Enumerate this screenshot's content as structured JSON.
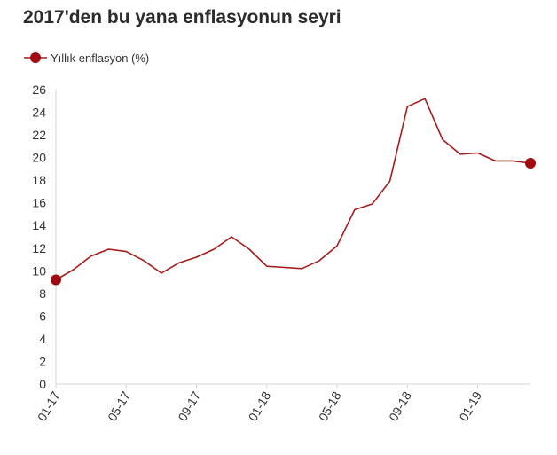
{
  "colors": {
    "series": "#a51c1c",
    "marker": "#a0090f",
    "axis": "#d6d6d6",
    "text": "#333333"
  },
  "chart_data": {
    "type": "line",
    "title": "2017'den bu yana enflasyonun seyri",
    "legend": "top-left",
    "grid": false,
    "xlabel": "",
    "ylabel": "",
    "ylim": [
      0,
      26
    ],
    "y_ticks": [
      "0",
      "2",
      "4",
      "6",
      "8",
      "10",
      "12",
      "14",
      "16",
      "18",
      "20",
      "22",
      "24",
      "26"
    ],
    "x_ticks": [
      "01-17",
      "05-17",
      "09-17",
      "01-18",
      "05-18",
      "09-18",
      "01-19"
    ],
    "x": [
      "01-17",
      "02-17",
      "03-17",
      "04-17",
      "05-17",
      "06-17",
      "07-17",
      "08-17",
      "09-17",
      "10-17",
      "11-17",
      "12-17",
      "01-18",
      "02-18",
      "03-18",
      "04-18",
      "05-18",
      "06-18",
      "07-18",
      "08-18",
      "09-18",
      "10-18",
      "11-18",
      "12-18",
      "01-19",
      "02-19",
      "03-19",
      "04-19"
    ],
    "series": [
      {
        "name": "Yıllık enflasyon (%)",
        "values": [
          9.2,
          10.1,
          11.3,
          11.9,
          11.7,
          10.9,
          9.8,
          10.7,
          11.2,
          11.9,
          13.0,
          11.9,
          10.4,
          10.3,
          10.2,
          10.9,
          12.2,
          15.4,
          15.9,
          17.9,
          24.5,
          25.2,
          21.6,
          20.3,
          20.4,
          19.7,
          19.7,
          19.5
        ],
        "markers": "endpoints"
      }
    ]
  }
}
